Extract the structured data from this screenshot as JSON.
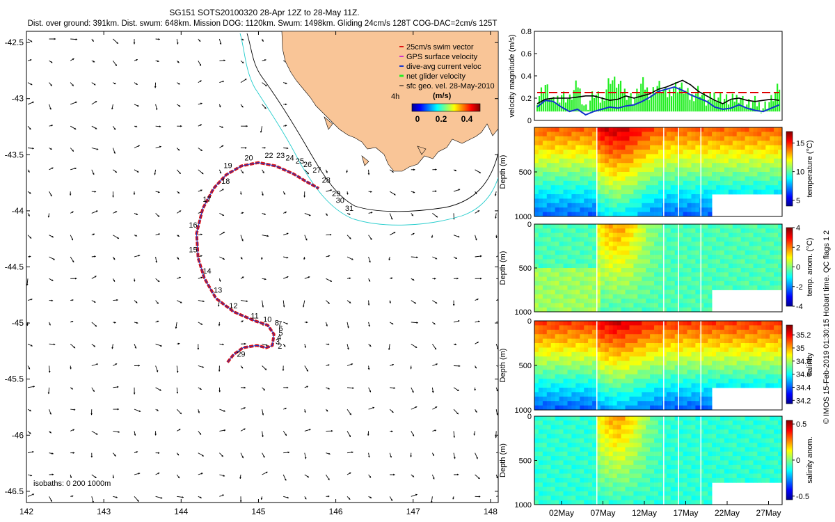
{
  "title": {
    "line1": "SG151 SOTS20100320 28-Apr 12Z to 28-May 11Z.",
    "line2": "Dist. over ground: 391km. Dist. swum: 648km. Mission DOG: 1120km. Swum: 1498km. Gliding 24cm/s 128T COG-DAC=2cm/s 125T"
  },
  "side_caption": "© IMOS 15-Feb-2019 01:30:15 Hobart time. QC flags 1  2",
  "colors": {
    "land": "#f9c597",
    "track": "#dd1111",
    "isobath_200": "#000000",
    "isobath_1000": "#22cccc",
    "net_glider": "#22ee22",
    "dive_avg": "#1133cc",
    "gps": "#cc33cc",
    "dog_line": "#dd0000"
  },
  "chart_data": [
    {
      "type": "scatter",
      "name": "map",
      "xlim": [
        142,
        148.1
      ],
      "ylim": [
        -46.6,
        -42.4
      ],
      "xticks": [
        "142",
        "143",
        "144",
        "145",
        "146",
        "147",
        "148"
      ],
      "yticks": [
        "-42.5",
        "-43",
        "-43.5",
        "-44",
        "-44.5",
        "-45",
        "-45.5",
        "-46",
        "-46.5"
      ],
      "isobath_label": "isobaths: 0   200  1000m",
      "legend": [
        "25cm/s swim vector",
        "GPS surface velocity",
        "dive-avg current veloc",
        "net glider velocity",
        "sfc geo. vel. 28-May-2010"
      ],
      "legend_extra": "4h",
      "colorbar_title": "(m/s)",
      "colorbar_ticks": [
        "0",
        "0.2",
        "0.4"
      ],
      "track": [
        [
          144.6,
          -45.35
        ],
        [
          144.68,
          -45.28
        ],
        [
          144.8,
          -45.22
        ],
        [
          144.98,
          -45.2
        ],
        [
          145.1,
          -45.22
        ],
        [
          145.18,
          -45.2
        ],
        [
          145.2,
          -45.1
        ],
        [
          145.12,
          -45.02
        ],
        [
          144.95,
          -44.98
        ],
        [
          144.68,
          -44.9
        ],
        [
          144.45,
          -44.78
        ],
        [
          144.3,
          -44.6
        ],
        [
          144.22,
          -44.42
        ],
        [
          144.2,
          -44.2
        ],
        [
          144.28,
          -43.98
        ],
        [
          144.42,
          -43.8
        ],
        [
          144.58,
          -43.68
        ],
        [
          144.78,
          -43.6
        ],
        [
          145.0,
          -43.57
        ],
        [
          145.22,
          -43.6
        ],
        [
          145.45,
          -43.67
        ],
        [
          145.62,
          -43.74
        ],
        [
          145.78,
          -43.8
        ]
      ],
      "dive_labels": [
        {
          "label": "2",
          "lon": 145.25,
          "lat": -45.23
        },
        {
          "label": "3",
          "lon": 145.22,
          "lat": -45.19
        },
        {
          "label": "4",
          "lon": 145.24,
          "lat": -45.15
        },
        {
          "label": "5",
          "lon": 145.26,
          "lat": -45.11
        },
        {
          "label": "6",
          "lon": 145.26,
          "lat": -45.07
        },
        {
          "label": "7",
          "lon": 145.25,
          "lat": -45.03
        },
        {
          "label": "8",
          "lon": 145.21,
          "lat": -45.02
        },
        {
          "label": "10",
          "lon": 145.06,
          "lat": -44.99
        },
        {
          "label": "11",
          "lon": 144.9,
          "lat": -44.96
        },
        {
          "label": "12",
          "lon": 144.62,
          "lat": -44.87
        },
        {
          "label": "13",
          "lon": 144.42,
          "lat": -44.73
        },
        {
          "label": "14",
          "lon": 144.28,
          "lat": -44.56
        },
        {
          "label": "15",
          "lon": 144.1,
          "lat": -44.37
        },
        {
          "label": "16",
          "lon": 144.1,
          "lat": -44.15
        },
        {
          "label": "17",
          "lon": 144.28,
          "lat": -43.92
        },
        {
          "label": "18",
          "lon": 144.52,
          "lat": -43.76
        },
        {
          "label": "19",
          "lon": 144.55,
          "lat": -43.62
        },
        {
          "label": "20",
          "lon": 144.82,
          "lat": -43.55
        },
        {
          "label": "22",
          "lon": 145.08,
          "lat": -43.53
        },
        {
          "label": "23",
          "lon": 145.23,
          "lat": -43.53
        },
        {
          "label": "24",
          "lon": 145.35,
          "lat": -43.55
        },
        {
          "label": "25",
          "lon": 145.48,
          "lat": -43.58
        },
        {
          "label": "26",
          "lon": 145.58,
          "lat": -43.61
        },
        {
          "label": "27",
          "lon": 145.7,
          "lat": -43.66
        },
        {
          "label": "28",
          "lon": 145.82,
          "lat": -43.75
        },
        {
          "label": "29",
          "lon": 145.95,
          "lat": -43.87
        },
        {
          "label": "30",
          "lon": 146.0,
          "lat": -43.93
        },
        {
          "label": "31",
          "lon": 146.12,
          "lat": -44.0
        },
        {
          "label": "29",
          "lon": 144.72,
          "lat": -45.3
        }
      ]
    },
    {
      "type": "line",
      "name": "velocity",
      "ylabel": "velocity magnitude (m/s)",
      "ylim": [
        0,
        0.8
      ],
      "yticks": [
        "0",
        "0.2",
        "0.4",
        "0.6",
        "0.8"
      ],
      "x": [
        0,
        1,
        2,
        3,
        4,
        5,
        6,
        7,
        8,
        9,
        10,
        11,
        12,
        13,
        14,
        15,
        16,
        17,
        18,
        19,
        20,
        21,
        22,
        23,
        24,
        25,
        26,
        27,
        28,
        29,
        30
      ],
      "series": [
        {
          "name": "black",
          "values": [
            0.15,
            0.19,
            0.2,
            0.2,
            0.2,
            0.21,
            0.22,
            0.22,
            0.2,
            0.18,
            0.19,
            0.22,
            0.2,
            0.22,
            0.24,
            0.28,
            0.3,
            0.33,
            0.36,
            0.32,
            0.26,
            0.22,
            0.18,
            0.15,
            0.19,
            0.2,
            0.18,
            0.17,
            0.18,
            0.19,
            0.18
          ]
        },
        {
          "name": "blue",
          "values": [
            0.12,
            0.18,
            0.17,
            0.12,
            0.08,
            0.1,
            0.05,
            0.08,
            0.1,
            0.12,
            0.11,
            0.13,
            0.14,
            0.17,
            0.21,
            0.26,
            0.28,
            0.3,
            0.27,
            0.23,
            0.2,
            0.17,
            0.12,
            0.1,
            0.11,
            0.14,
            0.11,
            0.09,
            0.08,
            0.11,
            0.14
          ]
        },
        {
          "name": "green",
          "values": [
            0.2,
            0.32,
            0.15,
            0.24,
            0.18,
            0.33,
            0.1,
            0.24,
            0.17,
            0.38,
            0.32,
            0.25,
            0.18,
            0.34,
            0.23,
            0.32,
            0.22,
            0.31,
            0.29,
            0.2,
            0.28,
            0.16,
            0.23,
            0.2,
            0.17,
            0.22,
            0.14,
            0.16,
            0.12,
            0.18,
            0.3
          ]
        },
        {
          "name": "dog_dash",
          "values": [
            0.25,
            0.25,
            0.25,
            0.25,
            0.25,
            0.25,
            0.25,
            0.25,
            0.25,
            0.25,
            0.25,
            0.25,
            0.25,
            0.25,
            0.25,
            0.25,
            0.25,
            0.25,
            0.25,
            0.25,
            0.25,
            0.25,
            0.25,
            0.25,
            0.25,
            0.25,
            0.25,
            0.25,
            0.25,
            0.25,
            0.25
          ]
        }
      ]
    },
    {
      "type": "heatmap",
      "name": "temperature",
      "ylabel": "Depth (m)",
      "colorbar_label": "temperature (°C)",
      "colorbar_ticks": [
        "5",
        "10",
        "15"
      ],
      "colorbar_range": [
        4,
        17
      ],
      "yticks": [
        "500",
        "1000"
      ]
    },
    {
      "type": "heatmap",
      "name": "temp_anom",
      "ylabel": "Depth (m)",
      "colorbar_label": "temp. anom. (°C)",
      "colorbar_ticks": [
        "4",
        "2",
        "0",
        "-2",
        "-4"
      ],
      "colorbar_range": [
        -4,
        4
      ],
      "yticks": [
        "0",
        "500",
        "1000"
      ]
    },
    {
      "type": "heatmap",
      "name": "salinity",
      "ylabel": "Depth (m)",
      "colorbar_label": "salinity",
      "colorbar_ticks": [
        "35.2",
        "35",
        "34.8",
        "34.6",
        "34.4",
        "34.2"
      ],
      "colorbar_range": [
        34.15,
        35.35
      ],
      "yticks": [
        "0",
        "500",
        "1000"
      ]
    },
    {
      "type": "heatmap",
      "name": "salinity_anom",
      "ylabel": "Depth (m)",
      "colorbar_label": "salinity anom.",
      "colorbar_ticks": [
        "0.5",
        "0",
        "-0.5"
      ],
      "colorbar_range": [
        -0.55,
        0.55
      ],
      "yticks": [
        "0",
        "500",
        "1000"
      ],
      "xticks": [
        "02May",
        "07May",
        "12May",
        "17May",
        "22May",
        "27May"
      ]
    }
  ]
}
